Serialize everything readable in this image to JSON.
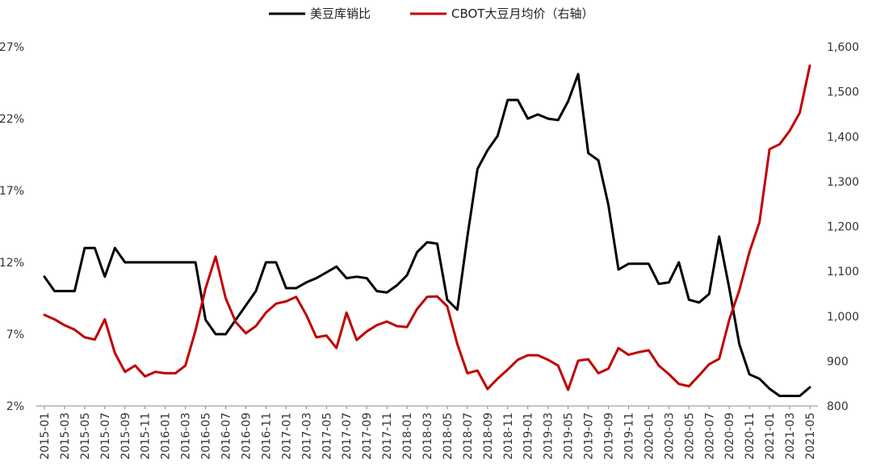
{
  "chart_data": {
    "type": "line",
    "legend_position": "top-center",
    "grid": false,
    "x": [
      "2015-01",
      "2015-02",
      "2015-03",
      "2015-04",
      "2015-05",
      "2015-06",
      "2015-07",
      "2015-08",
      "2015-09",
      "2015-10",
      "2015-11",
      "2015-12",
      "2016-01",
      "2016-02",
      "2016-03",
      "2016-04",
      "2016-05",
      "2016-06",
      "2016-07",
      "2016-08",
      "2016-09",
      "2016-10",
      "2016-11",
      "2016-12",
      "2017-01",
      "2017-02",
      "2017-03",
      "2017-04",
      "2017-05",
      "2017-06",
      "2017-07",
      "2017-08",
      "2017-09",
      "2017-10",
      "2017-11",
      "2017-12",
      "2018-01",
      "2018-02",
      "2018-03",
      "2018-04",
      "2018-05",
      "2018-06",
      "2018-07",
      "2018-08",
      "2018-09",
      "2018-10",
      "2018-11",
      "2018-12",
      "2019-01",
      "2019-02",
      "2019-03",
      "2019-04",
      "2019-05",
      "2019-06",
      "2019-07",
      "2019-08",
      "2019-09",
      "2019-10",
      "2019-11",
      "2019-12",
      "2020-01",
      "2020-02",
      "2020-03",
      "2020-04",
      "2020-05",
      "2020-06",
      "2020-07",
      "2020-08",
      "2020-09",
      "2020-10",
      "2020-11",
      "2020-12",
      "2021-01",
      "2021-02",
      "2021-03",
      "2021-04",
      "2021-05"
    ],
    "x_tick_labels": [
      "2015-01",
      "2015-03",
      "2015-05",
      "2015-07",
      "2015-09",
      "2015-11",
      "2016-01",
      "2016-03",
      "2016-05",
      "2016-07",
      "2016-09",
      "2016-11",
      "2017-01",
      "2017-03",
      "2017-05",
      "2017-07",
      "2017-09",
      "2017-11",
      "2018-01",
      "2018-03",
      "2018-05",
      "2018-07",
      "2018-09",
      "2018-11",
      "2019-01",
      "2019-03",
      "2019-05",
      "2019-07",
      "2019-09",
      "2019-11",
      "2020-01",
      "2020-03",
      "2020-05",
      "2020-07",
      "2020-09",
      "2020-11",
      "2021-01",
      "2021-03",
      "2021-05"
    ],
    "y_left": {
      "ticks": [
        "27%",
        "22%",
        "17%",
        "12%",
        "7%",
        "2%"
      ],
      "ylim": [
        2,
        27
      ],
      "tick_values": [
        27,
        22,
        17,
        12,
        7,
        2
      ]
    },
    "y_right": {
      "ticks": [
        "1,600",
        "1,500",
        "1,400",
        "1,300",
        "1,200",
        "1,100",
        "1,000",
        "900",
        "800"
      ],
      "ylim": [
        800,
        1600
      ],
      "tick_values": [
        1600,
        1500,
        1400,
        1300,
        1200,
        1100,
        1000,
        900,
        800
      ]
    },
    "series": [
      {
        "name": "美豆库销比",
        "axis": "left",
        "color": "#000000",
        "values": [
          11.0,
          10.0,
          10.0,
          10.0,
          13.0,
          13.0,
          11.0,
          13.0,
          12.0,
          12.0,
          12.0,
          12.0,
          12.0,
          12.0,
          12.0,
          12.0,
          8.0,
          7.0,
          7.0,
          8.0,
          9.0,
          10.0,
          12.0,
          12.0,
          10.2,
          10.2,
          10.6,
          10.9,
          11.3,
          11.7,
          10.9,
          11.0,
          10.9,
          10.0,
          9.9,
          10.4,
          11.1,
          12.7,
          13.4,
          13.3,
          9.4,
          8.7,
          13.8,
          18.5,
          19.8,
          20.8,
          23.3,
          23.3,
          22.0,
          22.3,
          22.0,
          21.9,
          23.2,
          25.1,
          19.6,
          19.1,
          16.0,
          11.5,
          11.9,
          11.9,
          11.9,
          10.5,
          10.6,
          12.0,
          9.4,
          9.2,
          9.8,
          13.8,
          10.2,
          6.3,
          4.2,
          3.9,
          3.2,
          2.7,
          2.7,
          2.7,
          3.3
        ]
      },
      {
        "name": "CBOT大豆月均价（右轴）",
        "axis": "right",
        "color": "#c00000",
        "values": [
          1003,
          993,
          980,
          970,
          953,
          948,
          993,
          918,
          876,
          890,
          866,
          876,
          873,
          873,
          890,
          968,
          1062,
          1133,
          1040,
          987,
          962,
          978,
          1008,
          1028,
          1033,
          1043,
          1003,
          953,
          957,
          929,
          1008,
          947,
          966,
          980,
          988,
          978,
          976,
          1016,
          1043,
          1044,
          1022,
          938,
          873,
          879,
          838,
          861,
          881,
          903,
          913,
          913,
          903,
          890,
          836,
          901,
          904,
          873,
          883,
          929,
          914,
          920,
          924,
          890,
          871,
          849,
          844,
          868,
          893,
          905,
          992,
          1058,
          1143,
          1209,
          1372,
          1383,
          1413,
          1453,
          1558
        ]
      }
    ]
  }
}
